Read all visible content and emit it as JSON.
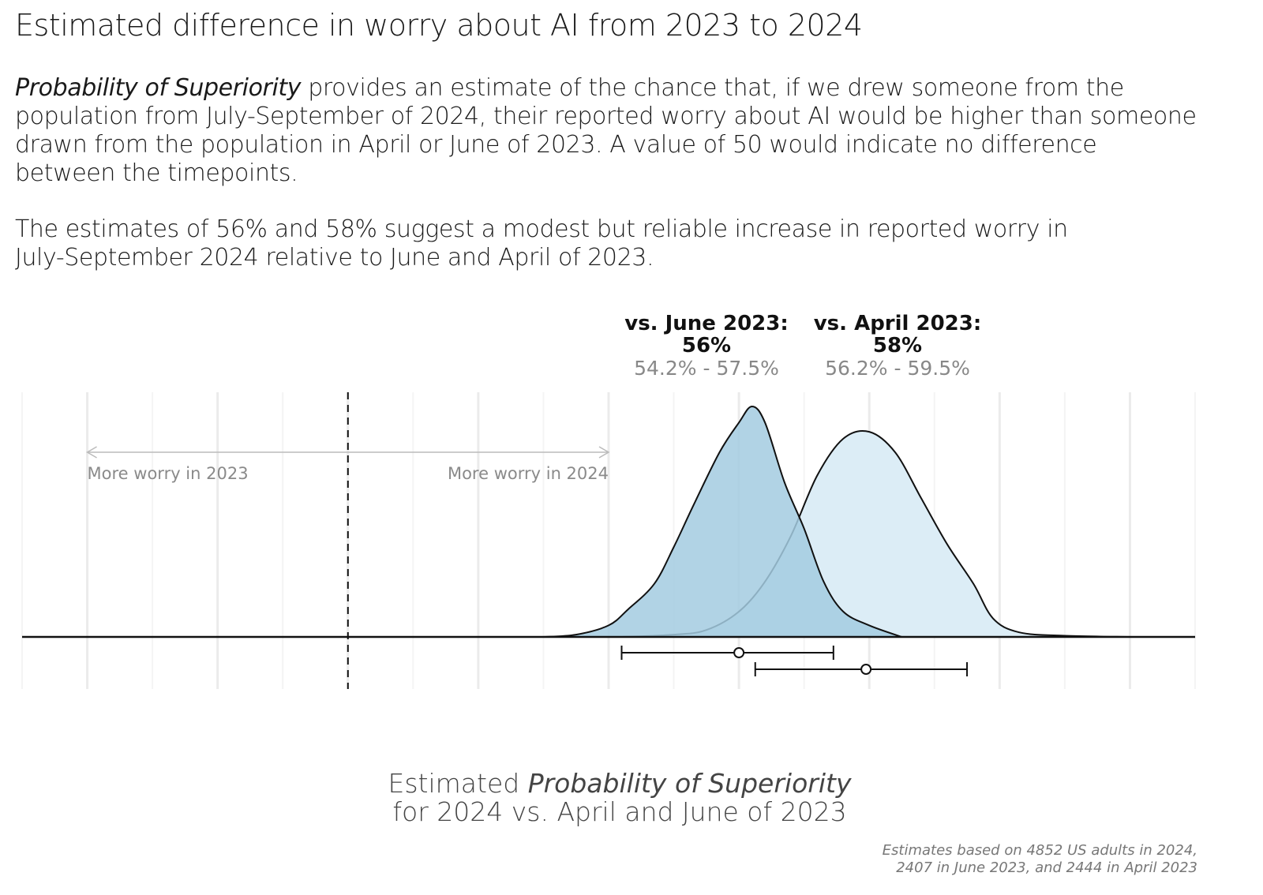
{
  "title": "Estimated difference in worry about AI from 2023 to 2024",
  "description": {
    "line1_italic": "Probability of Superiority",
    "line1_rest": " provides an estimate of the chance that, if we drew someone from the",
    "line2": "population from July-September of 2024, their reported worry about AI would be higher than someone",
    "line3": "drawn from the population in April or June of 2023. A value of 50 would indicate no difference",
    "line4": "between the timepoints.",
    "summary_line1": "The estimates of 56% and 58% suggest a modest but reliable increase in reported worry in",
    "summary_line2": "July-September 2024 relative to June and April of 2023."
  },
  "footnote": {
    "line1": "Estimates based on 4852 US adults in 2024,",
    "line2": "2407 in June 2023, and 2444 in April 2023"
  },
  "chart_data": {
    "type": "density",
    "xlabel_prefix": "Estimated ",
    "xlabel_italic": "Probability of Superiority",
    "xlabel_line2": "for 2024 vs. April and June of 2023",
    "xlim": [
      45,
      63
    ],
    "x_ticks": [
      46,
      48,
      50,
      52,
      54,
      56,
      58,
      60,
      62
    ],
    "reference_line": 50,
    "direction_labels": {
      "left": "More worry in 2023",
      "right": "More worry in 2024"
    },
    "direction_range": [
      46,
      54
    ],
    "series": [
      {
        "name": "vs. June 2023",
        "label": "vs. June 2023:",
        "estimate_label": "56%",
        "ci_label": "54.2% - 57.5%",
        "estimate": 56.0,
        "ci": [
          54.2,
          57.45
        ],
        "color": "#a3cbe0",
        "density": [
          [
            53.0,
            0.0
          ],
          [
            53.5,
            0.01
          ],
          [
            54.0,
            0.05
          ],
          [
            54.3,
            0.12
          ],
          [
            54.7,
            0.23
          ],
          [
            55.0,
            0.39
          ],
          [
            55.3,
            0.57
          ],
          [
            55.7,
            0.8
          ],
          [
            56.0,
            0.93
          ],
          [
            56.2,
            1.0
          ],
          [
            56.4,
            0.93
          ],
          [
            56.7,
            0.67
          ],
          [
            57.0,
            0.47
          ],
          [
            57.3,
            0.24
          ],
          [
            57.6,
            0.11
          ],
          [
            58.0,
            0.05
          ],
          [
            58.5,
            0.0
          ]
        ]
      },
      {
        "name": "vs. April 2023",
        "label": "vs. April 2023:",
        "estimate_label": "58%",
        "ci_label": "56.2% - 59.5%",
        "estimate": 57.95,
        "ci": [
          56.25,
          59.5
        ],
        "color": "#dcedf6",
        "density": [
          [
            54.2,
            0.0
          ],
          [
            55.0,
            0.01
          ],
          [
            55.5,
            0.03
          ],
          [
            56.0,
            0.11
          ],
          [
            56.4,
            0.24
          ],
          [
            56.8,
            0.44
          ],
          [
            57.2,
            0.7
          ],
          [
            57.6,
            0.86
          ],
          [
            58.0,
            0.89
          ],
          [
            58.4,
            0.8
          ],
          [
            58.8,
            0.6
          ],
          [
            59.2,
            0.4
          ],
          [
            59.6,
            0.23
          ],
          [
            59.9,
            0.08
          ],
          [
            60.3,
            0.02
          ],
          [
            61.0,
            0.005
          ],
          [
            62.0,
            0.0
          ]
        ]
      }
    ]
  }
}
